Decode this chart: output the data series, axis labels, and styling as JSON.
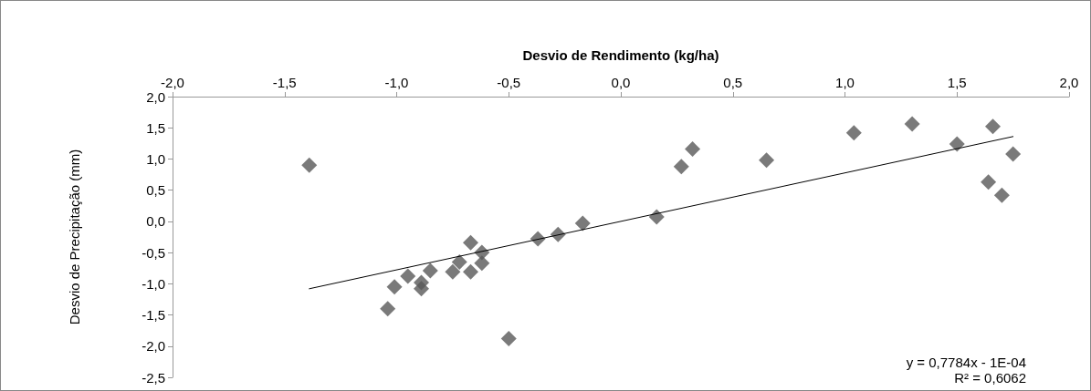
{
  "chart_data": {
    "type": "scatter",
    "xlabel": "Desvio de Rendimento (kg/ha)",
    "ylabel": "Desvio de Precipitação (mm)",
    "xlim": [
      -2,
      2
    ],
    "ylim": [
      -2.5,
      2
    ],
    "xticks": [
      {
        "value": -2,
        "label": "-2,0"
      },
      {
        "value": -1.5,
        "label": "-1,5"
      },
      {
        "value": -1,
        "label": "-1,0"
      },
      {
        "value": -0.5,
        "label": "-0,5"
      },
      {
        "value": 0,
        "label": "0,0"
      },
      {
        "value": 0.5,
        "label": "0,5"
      },
      {
        "value": 1,
        "label": "1,0"
      },
      {
        "value": 1.5,
        "label": "1,5"
      },
      {
        "value": 2,
        "label": "2,0"
      }
    ],
    "yticks": [
      {
        "value": -2.5,
        "label": "-2,5"
      },
      {
        "value": -2,
        "label": "-2,0"
      },
      {
        "value": -1.5,
        "label": "-1,5"
      },
      {
        "value": -1,
        "label": "-1,0"
      },
      {
        "value": -0.5,
        "label": "-0,5"
      },
      {
        "value": 0,
        "label": "0,0"
      },
      {
        "value": 0.5,
        "label": "0,5"
      },
      {
        "value": 1,
        "label": "1,0"
      },
      {
        "value": 1.5,
        "label": "1,5"
      },
      {
        "value": 2,
        "label": "2,0"
      }
    ],
    "grid": false,
    "marker": "diamond",
    "series": [
      {
        "color": "#595959",
        "x": [
          -1.39,
          -1.04,
          -1.01,
          -0.95,
          -0.89,
          -0.89,
          -0.85,
          -0.75,
          -0.72,
          -0.67,
          -0.67,
          -0.62,
          -0.62,
          -0.5,
          -0.37,
          -0.28,
          -0.17,
          0.16,
          0.27,
          0.32,
          0.65,
          1.04,
          1.3,
          1.5,
          1.66,
          1.64,
          1.7,
          1.75
        ],
        "values": [
          0.9,
          -1.4,
          -1.05,
          -0.88,
          -0.98,
          -1.08,
          -0.79,
          -0.81,
          -0.65,
          -0.34,
          -0.81,
          -0.5,
          -0.67,
          -1.88,
          -0.28,
          -0.21,
          -0.03,
          0.07,
          0.88,
          1.16,
          0.98,
          1.42,
          1.56,
          1.24,
          1.52,
          0.63,
          0.42,
          1.08
        ]
      },
      {
        "type": "line",
        "color": "#000000",
        "marker": "none",
        "line_style": "solid",
        "x": [
          -1.39,
          1.75
        ],
        "values": [
          -1.08,
          1.36
        ]
      }
    ],
    "annotations": [
      "y = 0,7784x - 1E-04",
      "R² = 0,6062"
    ]
  }
}
